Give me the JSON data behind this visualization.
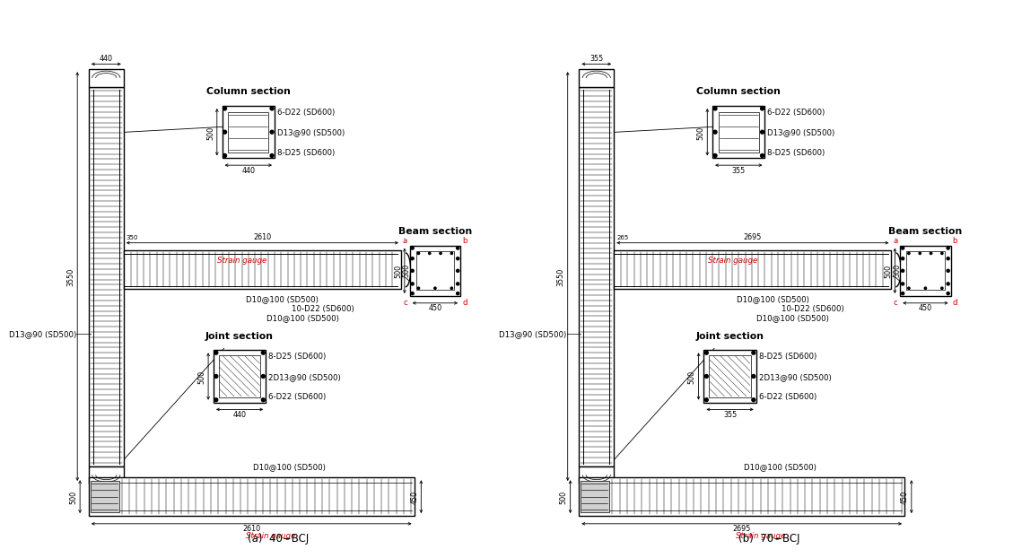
{
  "fig_width": 11.04,
  "fig_height": 6.28,
  "panels": [
    {
      "caption": "(a)  40−BCJ",
      "col_width_dim": "440",
      "col_height_dim": "3550",
      "beam_length_dim": "2610",
      "beam_height_dim": "500",
      "beam_sec_dim": "450",
      "joint_width_dim": "440",
      "joint_height_dim": "500",
      "base_length_dim": "2610",
      "base_height_dim": "450",
      "base_width_dim": "500",
      "near_col_dim": "350",
      "col_sec_label": "Column section",
      "beam_sec_label": "Beam section",
      "joint_sec_label": "Joint section",
      "col_text": [
        "6-D22 (SD600)",
        "D13@90 (SD500)",
        "8-D25 (SD600)"
      ],
      "beam_text": [
        "D10@100 (SD500)",
        "10-D22 (SD600)",
        "D10@100 (SD500)"
      ],
      "joint_text": [
        "8-D25 (SD600)",
        "2D13@90 (SD500)",
        "6-D22 (SD600)"
      ],
      "base_text": "D10@100 (SD500)",
      "col_stirrup": "D13@90 (SD500)",
      "strain_beam": "Strain gauge",
      "strain_base": "Strain gauge"
    },
    {
      "caption": "(b)  70−BCJ",
      "col_width_dim": "355",
      "col_height_dim": "3550",
      "beam_length_dim": "2695",
      "beam_height_dim": "500",
      "beam_sec_dim": "450",
      "joint_width_dim": "355",
      "joint_height_dim": "500",
      "base_length_dim": "2695",
      "base_height_dim": "450",
      "base_width_dim": "500",
      "near_col_dim": "265",
      "col_sec_label": "Column section",
      "beam_sec_label": "Beam section",
      "joint_sec_label": "Joint section",
      "col_text": [
        "6-D22 (SD600)",
        "D13@90 (SD500)",
        "8-D25 (SD600)"
      ],
      "beam_text": [
        "D10@100 (SD500)",
        "10-D22 (SD600)",
        "D10@100 (SD500)"
      ],
      "joint_text": [
        "8-D25 (SD600)",
        "2D13@90 (SD500)",
        "6-D22 (SD600)"
      ],
      "base_text": "D10@100 (SD500)",
      "col_stirrup": "D13@90 (SD500)",
      "strain_beam": "Strain gauge",
      "strain_base": "Strain gauge"
    }
  ]
}
